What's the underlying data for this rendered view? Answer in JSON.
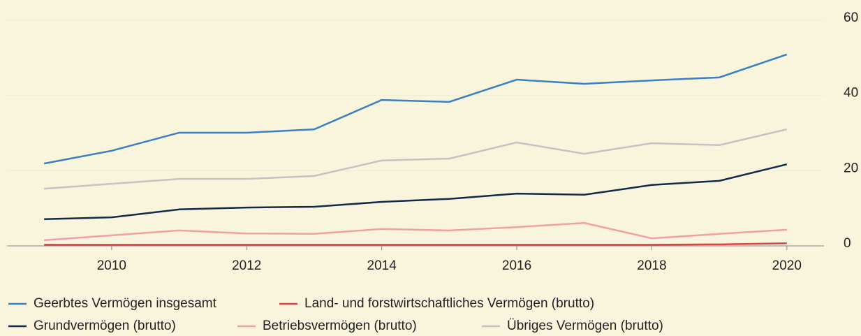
{
  "chart_data": {
    "type": "line",
    "x": [
      2009,
      2010,
      2011,
      2012,
      2013,
      2014,
      2015,
      2016,
      2017,
      2018,
      2019,
      2020
    ],
    "series": [
      {
        "name": "Geerbtes Vermögen insgesamt",
        "color": "#3a7fc1",
        "values": [
          21.9,
          25.3,
          30.1,
          30.1,
          31.0,
          38.8,
          38.3,
          44.2,
          43.1,
          44.0,
          44.8,
          50.9
        ]
      },
      {
        "name": "Land- und forstwirtschaftliches Vermögen (brutto)",
        "color": "#d9434b",
        "values": [
          0.3,
          0.3,
          0.3,
          0.3,
          0.3,
          0.3,
          0.3,
          0.3,
          0.3,
          0.3,
          0.4,
          0.7
        ]
      },
      {
        "name": "Grundvermögen (brutto)",
        "color": "#13294b",
        "values": [
          7.1,
          7.6,
          9.7,
          10.2,
          10.4,
          11.7,
          12.5,
          13.9,
          13.6,
          16.2,
          17.3,
          21.7
        ]
      },
      {
        "name": "Betriebsvermögen (brutto)",
        "color": "#f2a1a3",
        "values": [
          1.5,
          2.8,
          4.1,
          3.3,
          3.2,
          4.5,
          4.1,
          5.0,
          6.1,
          2.0,
          3.2,
          4.3
        ]
      },
      {
        "name": "Übriges Vermögen (brutto)",
        "color": "#c5c3c2",
        "values": [
          15.2,
          16.5,
          17.8,
          17.8,
          18.6,
          22.7,
          23.2,
          27.5,
          24.5,
          27.3,
          26.8,
          31.0
        ]
      }
    ],
    "xlim": [
      2008.45,
      2020.55
    ],
    "xticks": [
      2010,
      2012,
      2014,
      2016,
      2018,
      2020
    ],
    "ylim": [
      0,
      60
    ],
    "yticks": [
      0,
      20,
      40,
      60
    ]
  }
}
